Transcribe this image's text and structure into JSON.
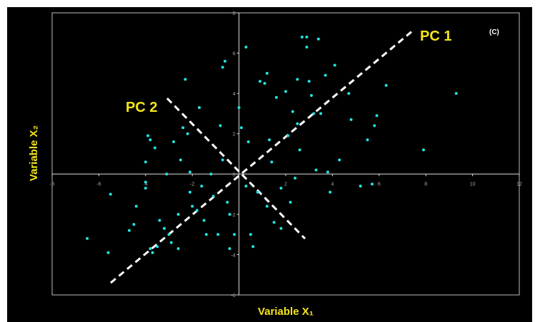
{
  "chart_data": {
    "type": "scatter",
    "x_label": "Variable X₁",
    "y_label": "Variable X₂",
    "annotations": [
      "PC 1",
      "PC 2",
      "(C)"
    ],
    "xlim": [
      -8,
      12
    ],
    "ylim": [
      -6,
      8
    ],
    "xticks": [
      -8,
      -6,
      -4,
      -2,
      2,
      4,
      6,
      8,
      10,
      12
    ],
    "yticks": [
      -6,
      -4,
      -2,
      0,
      2,
      4,
      6,
      8
    ],
    "color": "#1fe3e3",
    "x": [
      -6.5,
      -5.6,
      -5.5,
      -4.7,
      -4.5,
      -4.4,
      -4.0,
      -4.0,
      -3.9,
      -3.8,
      -3.6,
      -4.0,
      -3.8,
      -3.7,
      -3.5,
      -3.4,
      -3.2,
      -3.1,
      -3.0,
      -2.9,
      -2.8,
      -2.6,
      -2.6,
      -2.5,
      -2.4,
      -2.3,
      -2.2,
      -2.1,
      -2.1,
      -2.0,
      -1.8,
      -1.7,
      -1.6,
      -1.5,
      -1.4,
      -1.2,
      -1.1,
      -0.9,
      -0.8,
      -0.7,
      -0.7,
      -0.6,
      -0.5,
      -0.4,
      -0.4,
      -0.2,
      0.0,
      0.1,
      0.3,
      0.3,
      0.4,
      0.5,
      0.6,
      0.8,
      0.9,
      1.1,
      1.2,
      1.2,
      1.3,
      1.4,
      1.5,
      1.6,
      1.8,
      1.8,
      2.0,
      2.1,
      2.2,
      2.3,
      2.4,
      2.5,
      2.5,
      2.6,
      2.7,
      2.9,
      2.9,
      3.0,
      3.1,
      3.2,
      3.3,
      3.4,
      3.5,
      3.7,
      3.8,
      3.9,
      4.1,
      4.3,
      4.7,
      4.8,
      5.2,
      5.5,
      5.7,
      5.8,
      5.9,
      6.3,
      7.9,
      9.3
    ],
    "values": [
      -3.2,
      -3.9,
      -1.0,
      -2.8,
      -2.5,
      -1.6,
      -0.7,
      -0.4,
      1.9,
      1.7,
      1.3,
      0.6,
      -3.7,
      -3.9,
      -3.6,
      -2.3,
      -2.7,
      0.0,
      -3.0,
      -3.4,
      1.6,
      -3.7,
      -2.0,
      0.7,
      2.3,
      4.7,
      2.0,
      -0.9,
      0.1,
      -1.6,
      -1.8,
      3.3,
      -0.6,
      -2.3,
      -3.0,
      0.0,
      -1.1,
      -3.0,
      2.4,
      0.7,
      5.3,
      5.6,
      -1.4,
      -2.0,
      -3.7,
      -3.0,
      3.3,
      2.3,
      6.3,
      -0.6,
      1.6,
      -3.0,
      -3.6,
      -0.9,
      4.6,
      4.5,
      -1.6,
      5.0,
      1.7,
      0.6,
      -2.4,
      3.8,
      -0.7,
      -2.7,
      4.1,
      1.9,
      -1.4,
      3.1,
      -0.2,
      4.7,
      2.5,
      1.2,
      6.8,
      6.8,
      6.3,
      4.6,
      3.9,
      3.0,
      0.2,
      6.7,
      3.0,
      4.9,
      0.1,
      -0.9,
      5.4,
      0.7,
      4.0,
      2.7,
      -0.6,
      1.7,
      -0.5,
      2.4,
      2.9,
      4.4,
      1.2,
      4.0
    ]
  }
}
